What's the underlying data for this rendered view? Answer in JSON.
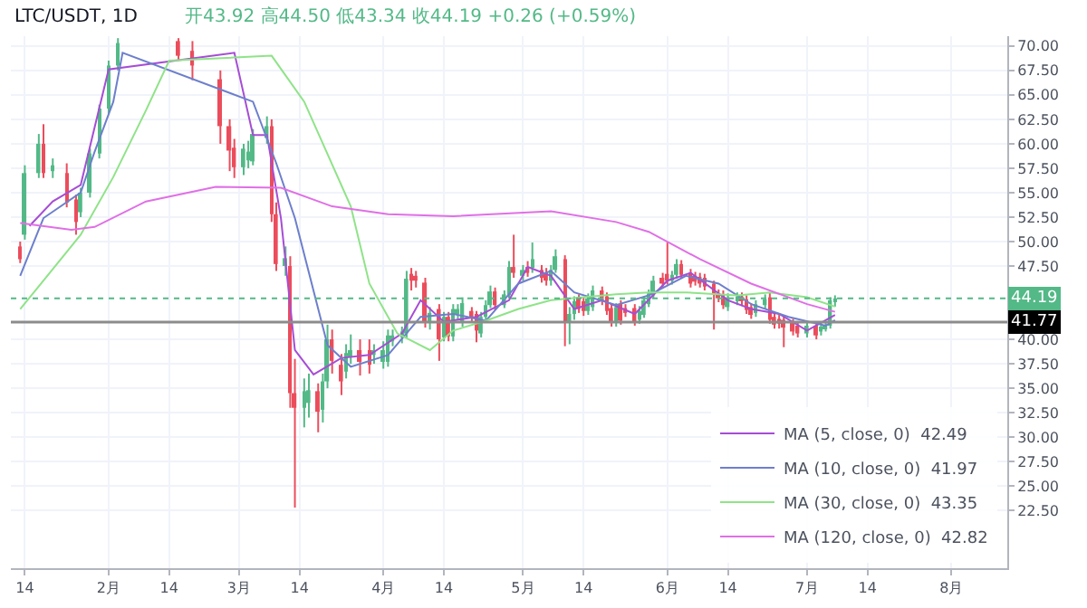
{
  "chart_data": {
    "type": "candlestick",
    "title": "LTC/USDT, 1D",
    "subtitle": "开43.92 高44.50 低43.34 收44.19 +0.26 (+0.59%)",
    "xlim": [
      "--01-11",
      "--08-13"
    ],
    "ylim": [
      16.6,
      71.0
    ],
    "xticks": [
      {
        "value": "--01-14",
        "label": "14"
      },
      {
        "value": "--02-01",
        "label": "2月"
      },
      {
        "value": "--02-14",
        "label": "14"
      },
      {
        "value": "--03-01",
        "label": "3月"
      },
      {
        "value": "--03-14",
        "label": "14"
      },
      {
        "value": "--04-01",
        "label": "4月"
      },
      {
        "value": "--04-14",
        "label": "14"
      },
      {
        "value": "--05-01",
        "label": "5月"
      },
      {
        "value": "--05-14",
        "label": "14"
      },
      {
        "value": "--06-01",
        "label": "6月"
      },
      {
        "value": "--06-14",
        "label": "14"
      },
      {
        "value": "--07-01",
        "label": "7月"
      },
      {
        "value": "--07-14",
        "label": "14"
      },
      {
        "value": "--08-01",
        "label": "8月"
      }
    ],
    "yticks": [
      {
        "value": 22.5,
        "label": "22.50"
      },
      {
        "value": 25,
        "label": "25.00"
      },
      {
        "value": 27.5,
        "label": "27.50"
      },
      {
        "value": 30,
        "label": "30.00"
      },
      {
        "value": 32.5,
        "label": "32.50"
      },
      {
        "value": 35,
        "label": "35.00"
      },
      {
        "value": 37.5,
        "label": "37.50"
      },
      {
        "value": 40,
        "label": "40.00"
      },
      {
        "value": 47.5,
        "label": "47.50"
      },
      {
        "value": 50,
        "label": "50.00"
      },
      {
        "value": 52.5,
        "label": "52.50"
      },
      {
        "value": 55,
        "label": "55.00"
      },
      {
        "value": 57.5,
        "label": "57.50"
      },
      {
        "value": 60,
        "label": "60.00"
      },
      {
        "value": 62.5,
        "label": "62.50"
      },
      {
        "value": 65,
        "label": "65.00"
      },
      {
        "value": 67.5,
        "label": "67.50"
      },
      {
        "value": 70,
        "label": "70.00"
      }
    ],
    "grid": true,
    "legend": "bottom right",
    "ref_lines": [
      {
        "axis": "y",
        "value": 41.77,
        "label": "41.77",
        "color": "#8c8c8c",
        "line_style": "solid"
      },
      {
        "axis": "y",
        "value": 44.19,
        "label": "44.19",
        "color": "#53b987",
        "line_style": "dotted"
      }
    ],
    "series": [
      {
        "colors": [
          "#eb4d5c",
          "#53b987",
          "#53b987",
          "#eb4d5c",
          "#53b987",
          "#eb4d5c",
          "#eb4d5c",
          "#53b987",
          "#53b987",
          "#53b987",
          "#53b987",
          "#53b987",
          "#eb4d5c",
          "#eb4d5c",
          "#eb4d5c",
          "#eb4d5c",
          "#eb4d5c",
          "#53b987",
          "#53b987",
          "#53b987",
          "#53b987",
          "#eb4d5c",
          "#eb4d5c",
          "#53b987",
          "#eb4d5c",
          "#eb4d5c",
          "#53b987",
          "#53b987",
          "#eb4d5c",
          "#53b987",
          "#53b987",
          "#eb4d5c",
          "#eb4d5c",
          "#53b987",
          "#53b987",
          "#eb4d5c",
          "#eb4d5c",
          "#53b987",
          "#53b987",
          "#53b987",
          "#53b987",
          "#53b987",
          "#53b987",
          "#eb4d5c",
          "#eb4d5c",
          "#eb4d5c",
          "#53b987",
          "#eb4d5c",
          "#53b987",
          "#eb4d5c",
          "#53b987",
          "#53b987",
          "#53b987",
          "#eb4d5c",
          "#eb4d5c",
          "#53b987",
          "#53b987",
          "#53b987",
          "#eb4d5c",
          "#53b987",
          "#53b987",
          "#eb4d5c",
          "#53b987",
          "#eb4d5c",
          "#53b987",
          "#eb4d5c",
          "#eb4d5c",
          "#53b987",
          "#53b987",
          "#eb4d5c",
          "#53b987",
          "#53b987",
          "#eb4d5c",
          "#eb4d5c",
          "#53b987",
          "#53b987",
          "#eb4d5c",
          "#eb4d5c",
          "#eb4d5c",
          "#53b987",
          "#eb4d5c",
          "#eb4d5c",
          "#eb4d5c",
          "#53b987",
          "#53b987",
          "#53b987",
          "#53b987",
          "#eb4d5c",
          "#eb4d5c",
          "#53b987",
          "#53b987",
          "#eb4d5c",
          "#eb4d5c",
          "#eb4d5c",
          "#eb4d5c",
          "#eb4d5c",
          "#eb4d5c",
          "#eb4d5c",
          "#eb4d5c",
          "#53b987",
          "#53b987",
          "#eb4d5c",
          "#eb4d5c",
          "#eb4d5c",
          "#53b987",
          "#53b987",
          "#eb4d5c",
          "#eb4d5c",
          "#eb4d5c",
          "#eb4d5c",
          "#eb4d5c",
          "#eb4d5c",
          "#53b987",
          "#eb4d5c",
          "#53b987",
          "#53b987",
          "#53b987",
          "#53b987"
        ],
        "x": [
          "--01-13",
          "--01-14",
          "--01-17",
          "--01-18",
          "--01-20",
          "--01-23",
          "--01-25",
          "--01-26",
          "--01-28",
          "--01-30",
          "--02-01",
          "--02-03",
          "--02-16",
          "--02-19",
          "--02-25",
          "--02-27",
          "--02-28",
          "--03-02",
          "--03-03",
          "--03-04",
          "--03-07",
          "--03-08",
          "--03-09",
          "--03-11",
          "--03-12",
          "--03-13",
          "--03-15",
          "--03-16",
          "--03-18",
          "--03-19",
          "--03-20",
          "--03-21",
          "--03-23",
          "--03-24",
          "--03-25",
          "--03-27",
          "--03-29",
          "--03-30",
          "--04-01",
          "--04-02",
          "--04-03",
          "--04-05",
          "--04-06",
          "--04-07",
          "--04-08",
          "--04-10",
          "--04-11",
          "--04-13",
          "--04-14",
          "--04-15",
          "--04-16",
          "--04-17",
          "--04-18",
          "--04-20",
          "--04-21",
          "--04-22",
          "--04-23",
          "--04-24",
          "--04-25",
          "--04-27",
          "--04-28",
          "--04-29",
          "--05-01",
          "--05-02",
          "--05-03",
          "--05-05",
          "--05-06",
          "--05-07",
          "--05-08",
          "--05-10",
          "--05-11",
          "--05-12",
          "--05-13",
          "--05-14",
          "--05-15",
          "--05-16",
          "--05-18",
          "--05-19",
          "--05-20",
          "--05-21",
          "--05-22",
          "--05-23",
          "--05-25",
          "--05-26",
          "--05-27",
          "--05-28",
          "--05-29",
          "--05-31",
          "--06-01",
          "--06-02",
          "--06-03",
          "--06-04",
          "--06-06",
          "--06-07",
          "--06-08",
          "--06-09",
          "--06-11",
          "--06-12",
          "--06-13",
          "--06-14",
          "--06-16",
          "--06-17",
          "--06-18",
          "--06-19",
          "--06-20",
          "--06-22",
          "--06-23",
          "--06-24",
          "--06-25",
          "--06-26",
          "--06-28",
          "--06-29",
          "--07-01",
          "--07-03",
          "--07-04",
          "--07-05",
          "--07-06",
          "--07-07"
        ],
        "ohlc": [
          [
            49.5,
            50,
            47.8,
            48.2
          ],
          [
            50.7,
            57.8,
            50.2,
            57
          ],
          [
            57,
            61,
            56.5,
            60
          ],
          [
            60,
            62,
            56.5,
            57
          ],
          [
            57.2,
            58.5,
            56.5,
            57.8
          ],
          [
            57,
            58,
            53.5,
            54
          ],
          [
            54.3,
            54.8,
            50.7,
            52
          ],
          [
            53,
            55.5,
            52.5,
            55
          ],
          [
            55,
            59.5,
            54.5,
            59
          ],
          [
            59,
            64,
            58.5,
            63.6
          ],
          [
            63.6,
            68.5,
            63,
            68
          ],
          [
            68,
            70.8,
            67.5,
            70.3
          ],
          [
            70.5,
            70.8,
            68.5,
            69
          ],
          [
            69.5,
            70.5,
            66.5,
            68
          ],
          [
            66.6,
            67.5,
            60,
            61.8
          ],
          [
            61.8,
            62.5,
            57.2,
            59.3
          ],
          [
            59.6,
            60.5,
            56.5,
            57.6
          ],
          [
            57.6,
            60,
            56.8,
            59.5
          ],
          [
            58.3,
            60.3,
            57.5,
            59.2
          ],
          [
            58.2,
            61.5,
            57.8,
            61
          ],
          [
            60.6,
            62.8,
            60,
            61.8
          ],
          [
            61.8,
            62.5,
            52,
            52.8
          ],
          [
            52.8,
            54,
            47,
            47.7
          ],
          [
            47.5,
            49.5,
            46.5,
            48.3
          ],
          [
            47.5,
            48.5,
            33,
            34.5
          ],
          [
            34.5,
            38,
            22.8,
            33
          ],
          [
            33,
            36,
            31,
            34.7
          ],
          [
            33.5,
            36.5,
            32,
            34.8
          ],
          [
            34.7,
            35.5,
            30.5,
            32.6
          ],
          [
            32.8,
            36.5,
            31.5,
            35.7
          ],
          [
            35.7,
            41.5,
            35,
            40
          ],
          [
            40,
            41,
            36.5,
            37.8
          ],
          [
            37.4,
            38.5,
            34.3,
            35.7
          ],
          [
            36.7,
            39.5,
            36,
            38.6
          ],
          [
            38.2,
            40.5,
            37.5,
            38.9
          ],
          [
            38.9,
            40,
            36.3,
            37.7
          ],
          [
            38.9,
            40,
            36.5,
            37.4
          ],
          [
            38.4,
            39.5,
            37.5,
            38.9
          ],
          [
            37.7,
            39.8,
            37,
            38.9
          ],
          [
            37.7,
            41,
            37.2,
            40.4
          ],
          [
            39.8,
            41,
            39.3,
            40.4
          ],
          [
            40.2,
            41.3,
            39.6,
            40.8
          ],
          [
            40.6,
            47,
            40.2,
            46.2
          ],
          [
            46.7,
            47.3,
            45,
            46
          ],
          [
            46.5,
            47,
            45.3,
            46
          ],
          [
            45.8,
            46.3,
            41.2,
            41.7
          ],
          [
            41.7,
            43.3,
            41,
            42.7
          ],
          [
            43.1,
            43.6,
            37.8,
            40
          ],
          [
            40.2,
            42.8,
            39.8,
            42.3
          ],
          [
            42.3,
            42.8,
            39.8,
            40.3
          ],
          [
            40.3,
            43.6,
            39.8,
            43.1
          ],
          [
            42.6,
            43.6,
            42,
            43.1
          ],
          [
            41.7,
            44.3,
            41.3,
            43.7
          ],
          [
            42.9,
            43.3,
            41.7,
            42.3
          ],
          [
            42.6,
            42.9,
            39.7,
            40.9
          ],
          [
            40.6,
            42.8,
            40.2,
            42.3
          ],
          [
            42.3,
            44,
            42,
            43.5
          ],
          [
            43.5,
            45.5,
            43.2,
            44.9
          ],
          [
            44.9,
            45.3,
            43,
            43.5
          ],
          [
            43.5,
            45,
            43.2,
            44.6
          ],
          [
            44.5,
            48,
            44.2,
            47.4
          ],
          [
            47.4,
            50.7,
            46.3,
            46.8
          ],
          [
            46.5,
            47.6,
            46,
            47.1
          ],
          [
            47.4,
            48,
            46.4,
            46.8
          ],
          [
            47.3,
            49.9,
            46.8,
            48.2
          ],
          [
            47.1,
            47.6,
            45.8,
            46.3
          ],
          [
            46.8,
            47.3,
            45.5,
            46
          ],
          [
            46,
            47.6,
            45.5,
            47.1
          ],
          [
            47.1,
            49.2,
            46.8,
            48.5
          ],
          [
            48.2,
            48.6,
            39.3,
            41.7
          ],
          [
            41.7,
            43.3,
            39.5,
            42.6
          ],
          [
            42.6,
            44.4,
            42,
            43.9
          ],
          [
            44.2,
            44.6,
            42.7,
            43.1
          ],
          [
            43.9,
            44.3,
            42.4,
            42.9
          ],
          [
            42.9,
            44.7,
            42.5,
            44.2
          ],
          [
            43.3,
            45.5,
            42.9,
            45
          ],
          [
            45,
            45.4,
            43.5,
            43.9
          ],
          [
            44.4,
            44.8,
            42.5,
            42.9
          ],
          [
            43.2,
            43.6,
            41.3,
            41.7
          ],
          [
            41.7,
            43.7,
            41.3,
            43.3
          ],
          [
            43.6,
            44,
            41.5,
            41.9
          ],
          [
            43.2,
            43.6,
            42.3,
            42.7
          ],
          [
            43.2,
            43.6,
            41.4,
            41.7
          ],
          [
            42,
            43.4,
            41.6,
            42.9
          ],
          [
            42.5,
            44.4,
            42.2,
            44
          ],
          [
            43.6,
            45.1,
            43.3,
            44.7
          ],
          [
            44.5,
            46.5,
            44.2,
            46
          ],
          [
            46.3,
            46.8,
            45.3,
            45.7
          ],
          [
            46.7,
            49.9,
            45.6,
            46
          ],
          [
            46,
            47,
            45.6,
            46.6
          ],
          [
            46.6,
            48.2,
            46.2,
            47.7
          ],
          [
            47.7,
            48.1,
            46.2,
            46.6
          ],
          [
            46.8,
            47.2,
            45.3,
            45.7
          ],
          [
            46.5,
            46.9,
            45.5,
            45.9
          ],
          [
            46.4,
            46.8,
            45.3,
            45.7
          ],
          [
            46.3,
            46.7,
            45,
            45.4
          ],
          [
            45.7,
            46,
            41,
            44.6
          ],
          [
            44.7,
            45.1,
            43.8,
            44.2
          ],
          [
            44.6,
            45,
            43.1,
            43.5
          ],
          [
            43.3,
            44.7,
            42.9,
            44.3
          ],
          [
            43.9,
            44.8,
            43.5,
            44.4
          ],
          [
            44.4,
            44.8,
            43.5,
            43.9
          ],
          [
            44.1,
            44.5,
            42.6,
            43
          ],
          [
            43.3,
            43.7,
            42.1,
            42.5
          ],
          [
            42.7,
            44,
            42.3,
            43.6
          ],
          [
            43.5,
            44.6,
            43.1,
            44.1
          ],
          [
            44.3,
            44.8,
            41.6,
            42
          ],
          [
            42.3,
            42.7,
            41.1,
            41.5
          ],
          [
            42.1,
            42.5,
            41.1,
            41.6
          ],
          [
            42,
            42.4,
            39.2,
            41.2
          ],
          [
            41.7,
            42.1,
            40.4,
            40.8
          ],
          [
            41.4,
            41.8,
            40.2,
            40.6
          ],
          [
            40.6,
            41.8,
            40.2,
            41.4
          ],
          [
            41.4,
            41.8,
            40,
            40.4
          ],
          [
            40.8,
            41.7,
            40.4,
            41.3
          ],
          [
            41.2,
            41.8,
            40.8,
            41.4
          ],
          [
            41.4,
            44.3,
            41.1,
            44
          ],
          [
            43.92,
            44.5,
            43.34,
            44.19
          ]
        ]
      },
      {
        "type": "line",
        "name": "MA (5, close, 0)  42.49",
        "color": "#a64dd5",
        "x": [
          "--01-15",
          "--01-20",
          "--01-26",
          "--01-29",
          "--02-01",
          "--02-28",
          "--03-04",
          "--03-07",
          "--03-10",
          "--03-13",
          "--03-17",
          "--03-23",
          "--03-29",
          "--04-05",
          "--04-09",
          "--04-14",
          "--04-21",
          "--04-28",
          "--05-02",
          "--05-07",
          "--05-12",
          "--05-18",
          "--05-25",
          "--06-01",
          "--06-06",
          "--06-14",
          "--06-19",
          "--06-25",
          "--07-01",
          "--07-07"
        ],
        "values": [
          51.6,
          54.1,
          55.8,
          61.7,
          67.6,
          69.3,
          60.9,
          60.9,
          52.4,
          38.9,
          36.4,
          38.1,
          38.4,
          40.6,
          44,
          41.8,
          42.3,
          44,
          47.4,
          46.5,
          43.1,
          44,
          42.6,
          46,
          46.8,
          44,
          43.1,
          42.6,
          40.9,
          42.49
        ]
      },
      {
        "type": "line",
        "name": "MA (10, close, 0)  41.97",
        "color": "#6d7fcc",
        "x": [
          "--01-13",
          "--01-18",
          "--01-26",
          "--01-29",
          "--02-02",
          "--02-04",
          "--03-04",
          "--03-09",
          "--03-13",
          "--03-20",
          "--03-25",
          "--04-02",
          "--04-09",
          "--04-16",
          "--04-23",
          "--04-30",
          "--05-07",
          "--05-12",
          "--05-21",
          "--05-28",
          "--06-05",
          "--06-12",
          "--06-19",
          "--06-27",
          "--07-05",
          "--07-07"
        ],
        "values": [
          46.5,
          52.4,
          55,
          59.2,
          64.3,
          69.3,
          64.3,
          58,
          52.4,
          39.4,
          37.2,
          38.4,
          42.3,
          42.6,
          41.9,
          45.7,
          47,
          44.8,
          43.5,
          44.5,
          46.5,
          45.7,
          43.6,
          42.3,
          41.4,
          41.97
        ]
      },
      {
        "type": "line",
        "name": "MA (30, close, 0)  43.35",
        "color": "#8fe388",
        "x": [
          "--01-13",
          "--01-18",
          "--01-26",
          "--02-02",
          "--02-09",
          "--02-14",
          "--03-08",
          "--03-15",
          "--03-25",
          "--03-29",
          "--04-04",
          "--04-11",
          "--04-16",
          "--04-23",
          "--04-30",
          "--05-07",
          "--05-14",
          "--05-21",
          "--05-28",
          "--06-05",
          "--06-16",
          "--06-23",
          "--07-01",
          "--07-07"
        ],
        "values": [
          43.1,
          46,
          50.7,
          56.6,
          63.4,
          68.5,
          69,
          64.3,
          53.6,
          45.7,
          40.6,
          38.9,
          40.9,
          41.9,
          43.1,
          44,
          44.3,
          44.6,
          44.8,
          44.8,
          44.5,
          44.8,
          44.3,
          43.35
        ]
      },
      {
        "type": "line",
        "name": "MA (120, close, 0)  42.82",
        "color": "#e06fe6",
        "x": [
          "--01-13",
          "--01-24",
          "--01-29",
          "--02-09",
          "--02-24",
          "--03-10",
          "--03-21",
          "--04-02",
          "--04-16",
          "--05-07",
          "--05-21",
          "--05-28",
          "--06-08",
          "--06-19",
          "--07-01",
          "--07-07"
        ],
        "values": [
          51.9,
          51.2,
          51.5,
          54.1,
          55.6,
          55.5,
          53.6,
          52.8,
          52.6,
          53.1,
          52,
          51,
          48.2,
          45.7,
          43.6,
          42.82
        ]
      }
    ]
  }
}
